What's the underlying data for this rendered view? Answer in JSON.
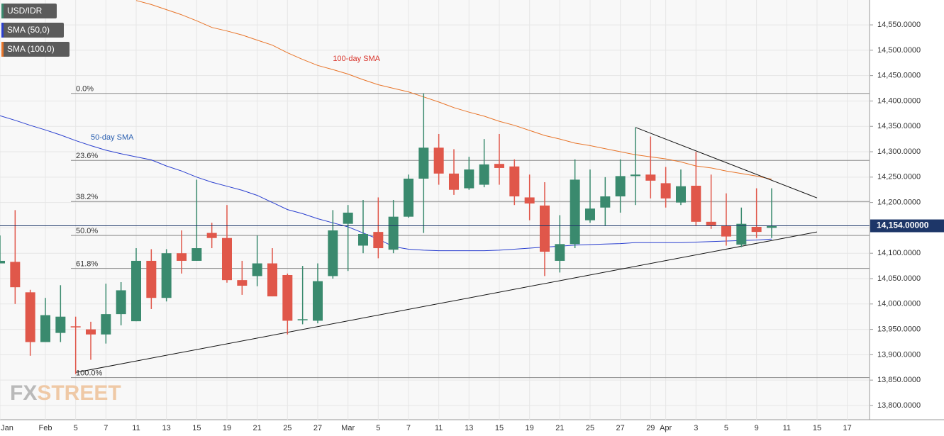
{
  "chart_data": {
    "type": "candlestick",
    "instrument": "USD/IDR",
    "color_up": "#3a8a6e",
    "color_down": "#e0574a",
    "categories": [
      "Jan",
      null,
      null,
      "Feb",
      null,
      "5",
      null,
      "7",
      null,
      "11",
      null,
      "13",
      null,
      "15",
      null,
      "19",
      null,
      "21",
      null,
      "25",
      null,
      "27",
      null,
      "Mar",
      null,
      "5",
      null,
      "7",
      null,
      "11",
      null,
      "13",
      null,
      "15",
      null,
      "19",
      null,
      "21",
      null,
      "25",
      null,
      "27",
      null,
      "29",
      "Apr",
      null,
      "3",
      null,
      "5",
      null,
      "9",
      null,
      "11",
      null,
      "15",
      null,
      "17",
      null
    ],
    "open": [
      14080,
      14083,
      14023,
      13925,
      13943,
      13956,
      13950,
      13940,
      13980,
      13966,
      14085,
      14012,
      14100,
      14085,
      14140,
      14130,
      14047,
      14055,
      14080,
      14057,
      13970,
      13967,
      14055,
      14158,
      14115,
      14142,
      14107,
      14172,
      14247,
      14308,
      14257,
      14228,
      14235,
      14276,
      14271,
      14210,
      14194,
      14085,
      14118,
      14165,
      14190,
      14212,
      14252,
      14255,
      14238,
      14200,
      14233,
      14162,
      14155,
      14117,
      14152,
      14150,
      null,
      null,
      null,
      null,
      null,
      null
    ],
    "high": [
      14135,
      14185,
      14028,
      14012,
      14037,
      13975,
      13965,
      14040,
      14043,
      14110,
      14108,
      14108,
      14145,
      14245,
      14160,
      14195,
      14085,
      14135,
      14110,
      14060,
      14075,
      14080,
      14185,
      14195,
      14205,
      14210,
      14205,
      14255,
      14415,
      14335,
      14305,
      14290,
      14325,
      14335,
      14285,
      14255,
      14240,
      14175,
      14285,
      14265,
      14250,
      14285,
      14348,
      14330,
      14270,
      14265,
      14300,
      14255,
      14218,
      14190,
      14228,
      14228,
      null,
      null,
      null,
      null,
      null,
      null
    ],
    "low": [
      14080,
      14000,
      13898,
      13925,
      13925,
      13862,
      13890,
      13922,
      13958,
      13966,
      13990,
      14005,
      14060,
      14085,
      14110,
      14042,
      14018,
      14035,
      14015,
      13940,
      13960,
      13962,
      14050,
      14065,
      14100,
      14090,
      14100,
      14170,
      14140,
      14235,
      14215,
      14225,
      14230,
      14235,
      14195,
      14165,
      14055,
      14062,
      14110,
      14160,
      14155,
      14180,
      14195,
      14208,
      14190,
      14195,
      14155,
      14148,
      14115,
      14112,
      14130,
      14130,
      null,
      null,
      null,
      null,
      null,
      null
    ],
    "close": [
      14085,
      14033,
      13925,
      13978,
      13975,
      13955,
      13940,
      13980,
      14027,
      14085,
      14012,
      14100,
      14085,
      14110,
      14130,
      14047,
      14036,
      14080,
      14015,
      13967,
      13970,
      14045,
      14145,
      14180,
      14138,
      14110,
      14172,
      14247,
      14308,
      14257,
      14225,
      14265,
      14275,
      14268,
      14212,
      14198,
      14103,
      14118,
      14245,
      14188,
      14212,
      14252,
      14255,
      14243,
      14208,
      14232,
      14162,
      14155,
      14133,
      14158,
      14142,
      14154,
      null,
      null,
      null,
      null,
      null,
      null
    ],
    "series": [
      {
        "name": "SMA (50,0)",
        "color": "#2a3fcf",
        "values": [
          14371,
          14362,
          14352,
          14343,
          14333,
          14322,
          14312,
          14303,
          14296,
          14290,
          14284,
          14272,
          14262,
          14250,
          14240,
          14232,
          14224,
          14214,
          14200,
          14186,
          14178,
          14168,
          14160,
          14152,
          14140,
          14128,
          14113,
          14108,
          14106,
          14105,
          14105,
          14105,
          14105,
          14106,
          14108,
          14110,
          14112,
          14114,
          14116,
          14117,
          14118,
          14119,
          14121,
          14121,
          14121,
          14121,
          14122,
          14123,
          14124,
          14125,
          14126,
          14128,
          null,
          null,
          null,
          null,
          null,
          null
        ]
      },
      {
        "name": "SMA (100,0)",
        "color": "#e8752a",
        "values": [
          null,
          null,
          null,
          null,
          null,
          null,
          null,
          null,
          null,
          14598,
          14590,
          14580,
          14570,
          14558,
          14545,
          14538,
          14530,
          14520,
          14510,
          14495,
          14482,
          14470,
          14462,
          14453,
          14442,
          14432,
          14425,
          14418,
          14408,
          14398,
          14387,
          14378,
          14370,
          14360,
          14352,
          14342,
          14332,
          14325,
          14317,
          14312,
          14306,
          14300,
          14294,
          14290,
          14286,
          14280,
          14272,
          14268,
          14262,
          14257,
          14252,
          14246,
          null,
          null,
          null,
          null,
          null,
          null
        ]
      }
    ],
    "annotations": [
      {
        "text": "50-day SMA",
        "x": 6,
        "y": 14328,
        "color": "#2a5fb0"
      },
      {
        "text": "100-day SMA",
        "x": 22,
        "y": 14483,
        "color": "#d9342b"
      }
    ],
    "fib_levels": [
      {
        "label": "0.0%",
        "value": 14415
      },
      {
        "label": "23.6%",
        "value": 14283
      },
      {
        "label": "38.2%",
        "value": 14202
      },
      {
        "label": "50.0%",
        "value": 14135
      },
      {
        "label": "61.8%",
        "value": 14070
      },
      {
        "label": "100.0%",
        "value": 13855
      }
    ],
    "trendlines": [
      {
        "points": [
          [
            5,
            13865
          ],
          [
            54,
            14142
          ]
        ]
      },
      {
        "points": [
          [
            42,
            14348
          ],
          [
            54,
            14209
          ]
        ]
      }
    ],
    "last_price": {
      "value": 14154,
      "label": "14,154.00000"
    },
    "ylim": [
      13772,
      14599
    ],
    "yticks": [
      {
        "value": 13800,
        "label": "13,800.0000"
      },
      {
        "value": 13850,
        "label": "13,850.0000"
      },
      {
        "value": 13900,
        "label": "13,900.0000"
      },
      {
        "value": 13950,
        "label": "13,950.0000"
      },
      {
        "value": 14000,
        "label": "14,000.0000"
      },
      {
        "value": 14050,
        "label": "14,050.0000"
      },
      {
        "value": 14100,
        "label": "14,100.0000"
      },
      {
        "value": 14150,
        "label": "14,150.0000"
      },
      {
        "value": 14200,
        "label": "14,200.0000"
      },
      {
        "value": 14250,
        "label": "14,250.0000"
      },
      {
        "value": 14300,
        "label": "14,300.0000"
      },
      {
        "value": 14350,
        "label": "14,350.0000"
      },
      {
        "value": 14400,
        "label": "14,400.0000"
      },
      {
        "value": 14450,
        "label": "14,450.0000"
      },
      {
        "value": 14500,
        "label": "14,500.0000"
      },
      {
        "value": 14550,
        "label": "14,550.0000"
      }
    ],
    "grid": true,
    "watermark": {
      "fx": "FX",
      "street": "STREET"
    }
  }
}
